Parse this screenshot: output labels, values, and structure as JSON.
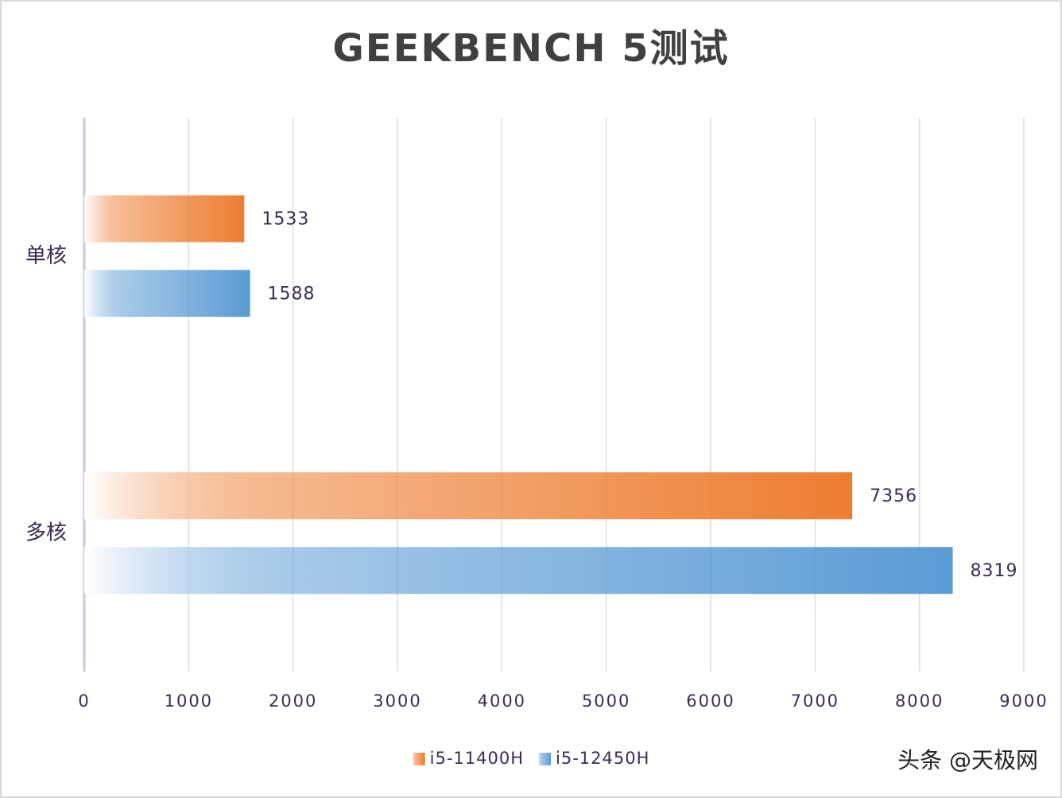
{
  "chart_data": {
    "type": "hbar",
    "title": "GEEKBENCH 5测试",
    "categories": [
      "单核",
      "多核"
    ],
    "series": [
      {
        "name": "i5-11400H",
        "color": "#ed7d31",
        "values": [
          1533,
          7356
        ]
      },
      {
        "name": "i5-12450H",
        "color": "#5b9bd5",
        "values": [
          1588,
          8319
        ]
      }
    ],
    "xlim": [
      0,
      9000
    ],
    "xticks": [
      0,
      1000,
      2000,
      3000,
      4000,
      5000,
      6000,
      7000,
      8000,
      9000
    ],
    "grid": true,
    "legend": "bottom",
    "watermark": "头条 @天极网"
  }
}
